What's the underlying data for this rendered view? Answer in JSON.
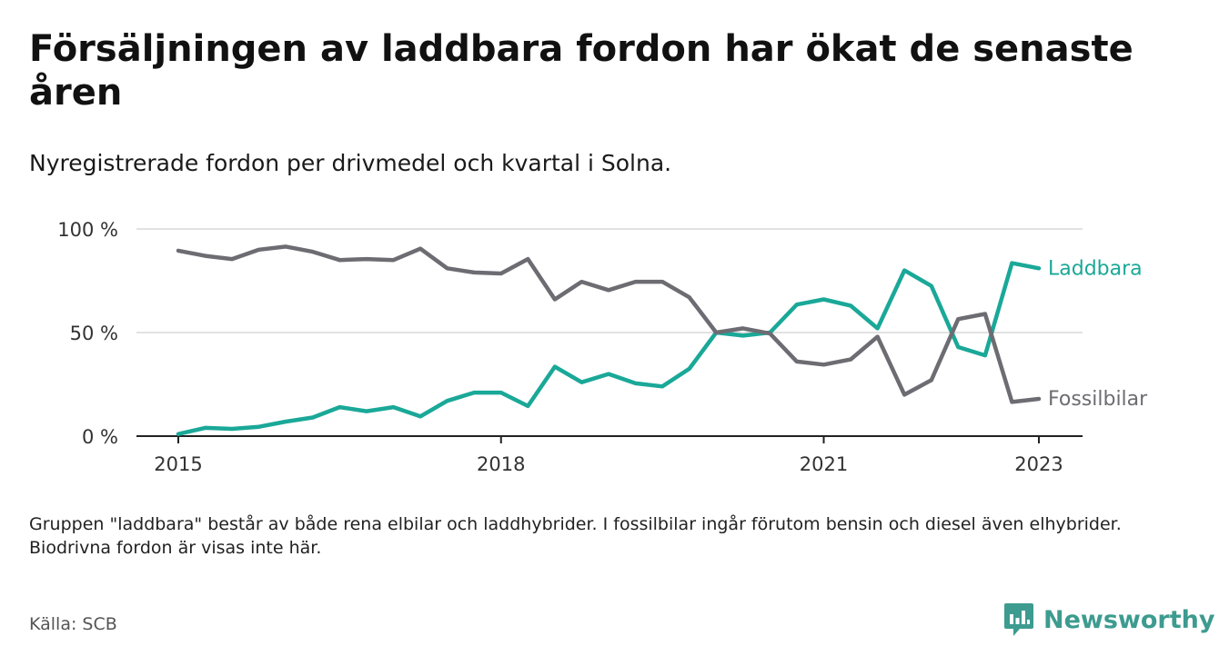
{
  "title": "Försäljningen av laddbara fordon har ökat de senaste åren",
  "subtitle": "Nyregistrerade fordon per drivmedel och kvartal i Solna.",
  "note": "Gruppen \"laddbara\" består av både rena elbilar och laddhybrider. I fossilbilar ingår förutom bensin och diesel även elhybrider. Biodrivna fordon är visas inte här.",
  "source": "Källa: SCB",
  "brand": {
    "name": "Newsworthy",
    "icon": "newsworthy-logo-icon",
    "color": "#3d9b8f"
  },
  "chart_data": {
    "type": "line",
    "title": "Försäljningen av laddbara fordon har ökat de senaste åren",
    "subtitle": "Nyregistrerade fordon per drivmedel och kvartal i Solna.",
    "xlabel": "",
    "ylabel": "",
    "x_start": 2015.0,
    "x_step": 0.25,
    "xlim": [
      2015.0,
      2023.0
    ],
    "ylim": [
      0,
      100
    ],
    "grid": true,
    "x_ticks": [
      {
        "value": 2015,
        "label": "2015"
      },
      {
        "value": 2018,
        "label": "2018"
      },
      {
        "value": 2021,
        "label": "2021"
      },
      {
        "value": 2023,
        "label": "2023"
      }
    ],
    "y_ticks": [
      {
        "value": 0,
        "label": "0 %"
      },
      {
        "value": 50,
        "label": "50 %"
      },
      {
        "value": 100,
        "label": "100 %"
      }
    ],
    "series": [
      {
        "name": "Laddbara",
        "color": "#1aa898",
        "values": [
          1,
          4,
          3.5,
          4.5,
          7,
          9,
          14,
          12,
          14,
          9.5,
          17,
          21,
          21,
          14.5,
          33.5,
          26,
          30,
          25.5,
          24,
          32.5,
          50,
          48.5,
          50,
          63.5,
          66,
          63,
          52,
          80,
          72.5,
          43,
          39,
          83.5,
          81
        ]
      },
      {
        "name": "Fossilbilar",
        "color": "#6d6c72",
        "values": [
          89.5,
          87,
          85.5,
          90,
          91.5,
          89,
          85,
          85.5,
          85,
          90.5,
          81,
          79,
          78.5,
          85.5,
          66,
          74.5,
          70.5,
          74.5,
          74.5,
          67,
          50,
          52,
          49.5,
          36,
          34.5,
          37,
          48,
          20,
          27,
          56.5,
          59,
          16.5,
          18
        ]
      }
    ]
  }
}
